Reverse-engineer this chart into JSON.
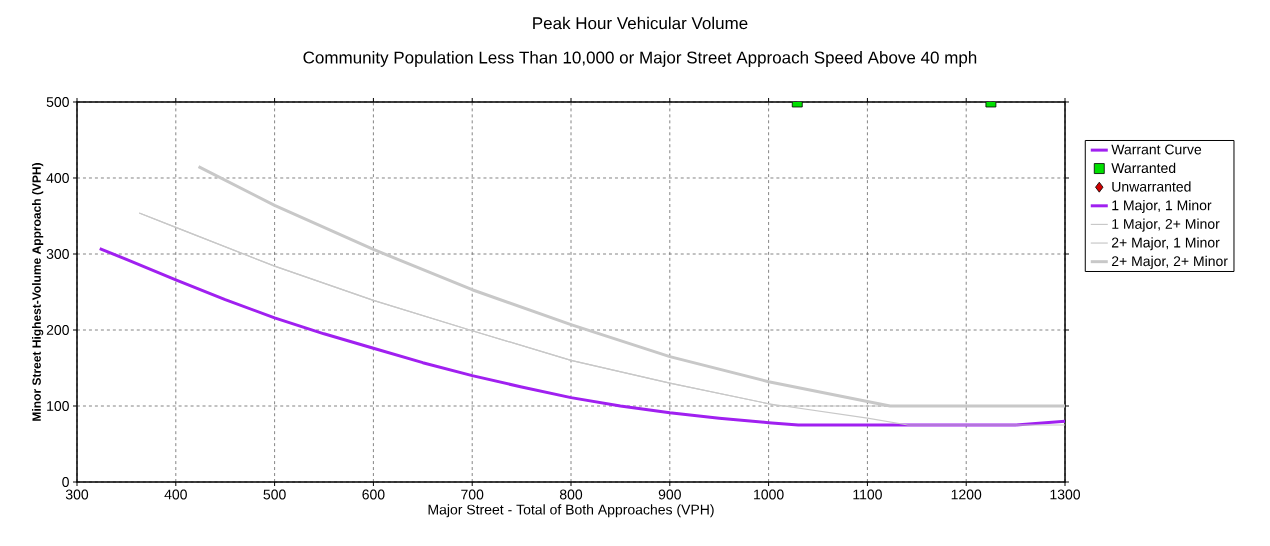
{
  "chart_data": {
    "type": "line",
    "title": "Peak Hour Vehicular Volume",
    "subtitle": "Community Population Less Than 10,000 or Major Street Approach Speed Above 40 mph",
    "xlabel": "Major Street - Total of Both Approaches (VPH)",
    "ylabel": "Minor Street Highest-Volume Approach (VPH)",
    "xlim": [
      300,
      1300
    ],
    "ylim": [
      0,
      500
    ],
    "xticks": [
      300,
      400,
      500,
      600,
      700,
      800,
      900,
      1000,
      1100,
      1200,
      1300
    ],
    "yticks": [
      0,
      100,
      200,
      300,
      400,
      500
    ],
    "grid": true,
    "legend": "right",
    "series": [
      {
        "name": "Warrant Curve",
        "color": "#a020f0"
      },
      {
        "name": "Warranted",
        "type": "scatter",
        "marker": "square",
        "color": "#00e000",
        "x": [
          1029,
          1225
        ],
        "values": [
          500,
          500
        ]
      },
      {
        "name": "Unwarranted",
        "type": "scatter",
        "marker": "diamond",
        "color": "#d00000"
      },
      {
        "name": "1 Major, 1 Minor",
        "color": "#a020f0",
        "x": [
          323,
          350,
          400,
          450,
          500,
          550,
          600,
          650,
          700,
          750,
          800,
          850,
          900,
          950,
          1000,
          1030,
          1250,
          1300
        ],
        "values": [
          307,
          293,
          266,
          240,
          216,
          195,
          176,
          157,
          140,
          125,
          111,
          100,
          91,
          84,
          78,
          75,
          75,
          80
        ]
      },
      {
        "name": "1 Major, 2+ Minor",
        "color": "#c8c8c8",
        "x": [
          363,
          400,
          500,
          600,
          700,
          800,
          900,
          1000,
          1010,
          1300
        ],
        "values": [
          354,
          335,
          284,
          239,
          199,
          160,
          130,
          103,
          100,
          100
        ]
      },
      {
        "name": "2+ Major, 1 Minor",
        "color": "#c8c8c8",
        "x": [
          363,
          400,
          500,
          600,
          700,
          800,
          900,
          1000,
          1100,
          1141,
          1300
        ],
        "values": [
          354,
          335,
          284,
          239,
          199,
          160,
          130,
          103,
          84,
          75,
          75
        ]
      },
      {
        "name": "2+ Major, 2+ Minor",
        "color": "#c8c8c8",
        "x": [
          423,
          500,
          600,
          700,
          800,
          900,
          1000,
          1100,
          1123,
          1300
        ],
        "values": [
          415,
          364,
          306,
          253,
          207,
          165,
          132,
          106,
          100,
          100
        ]
      }
    ]
  }
}
